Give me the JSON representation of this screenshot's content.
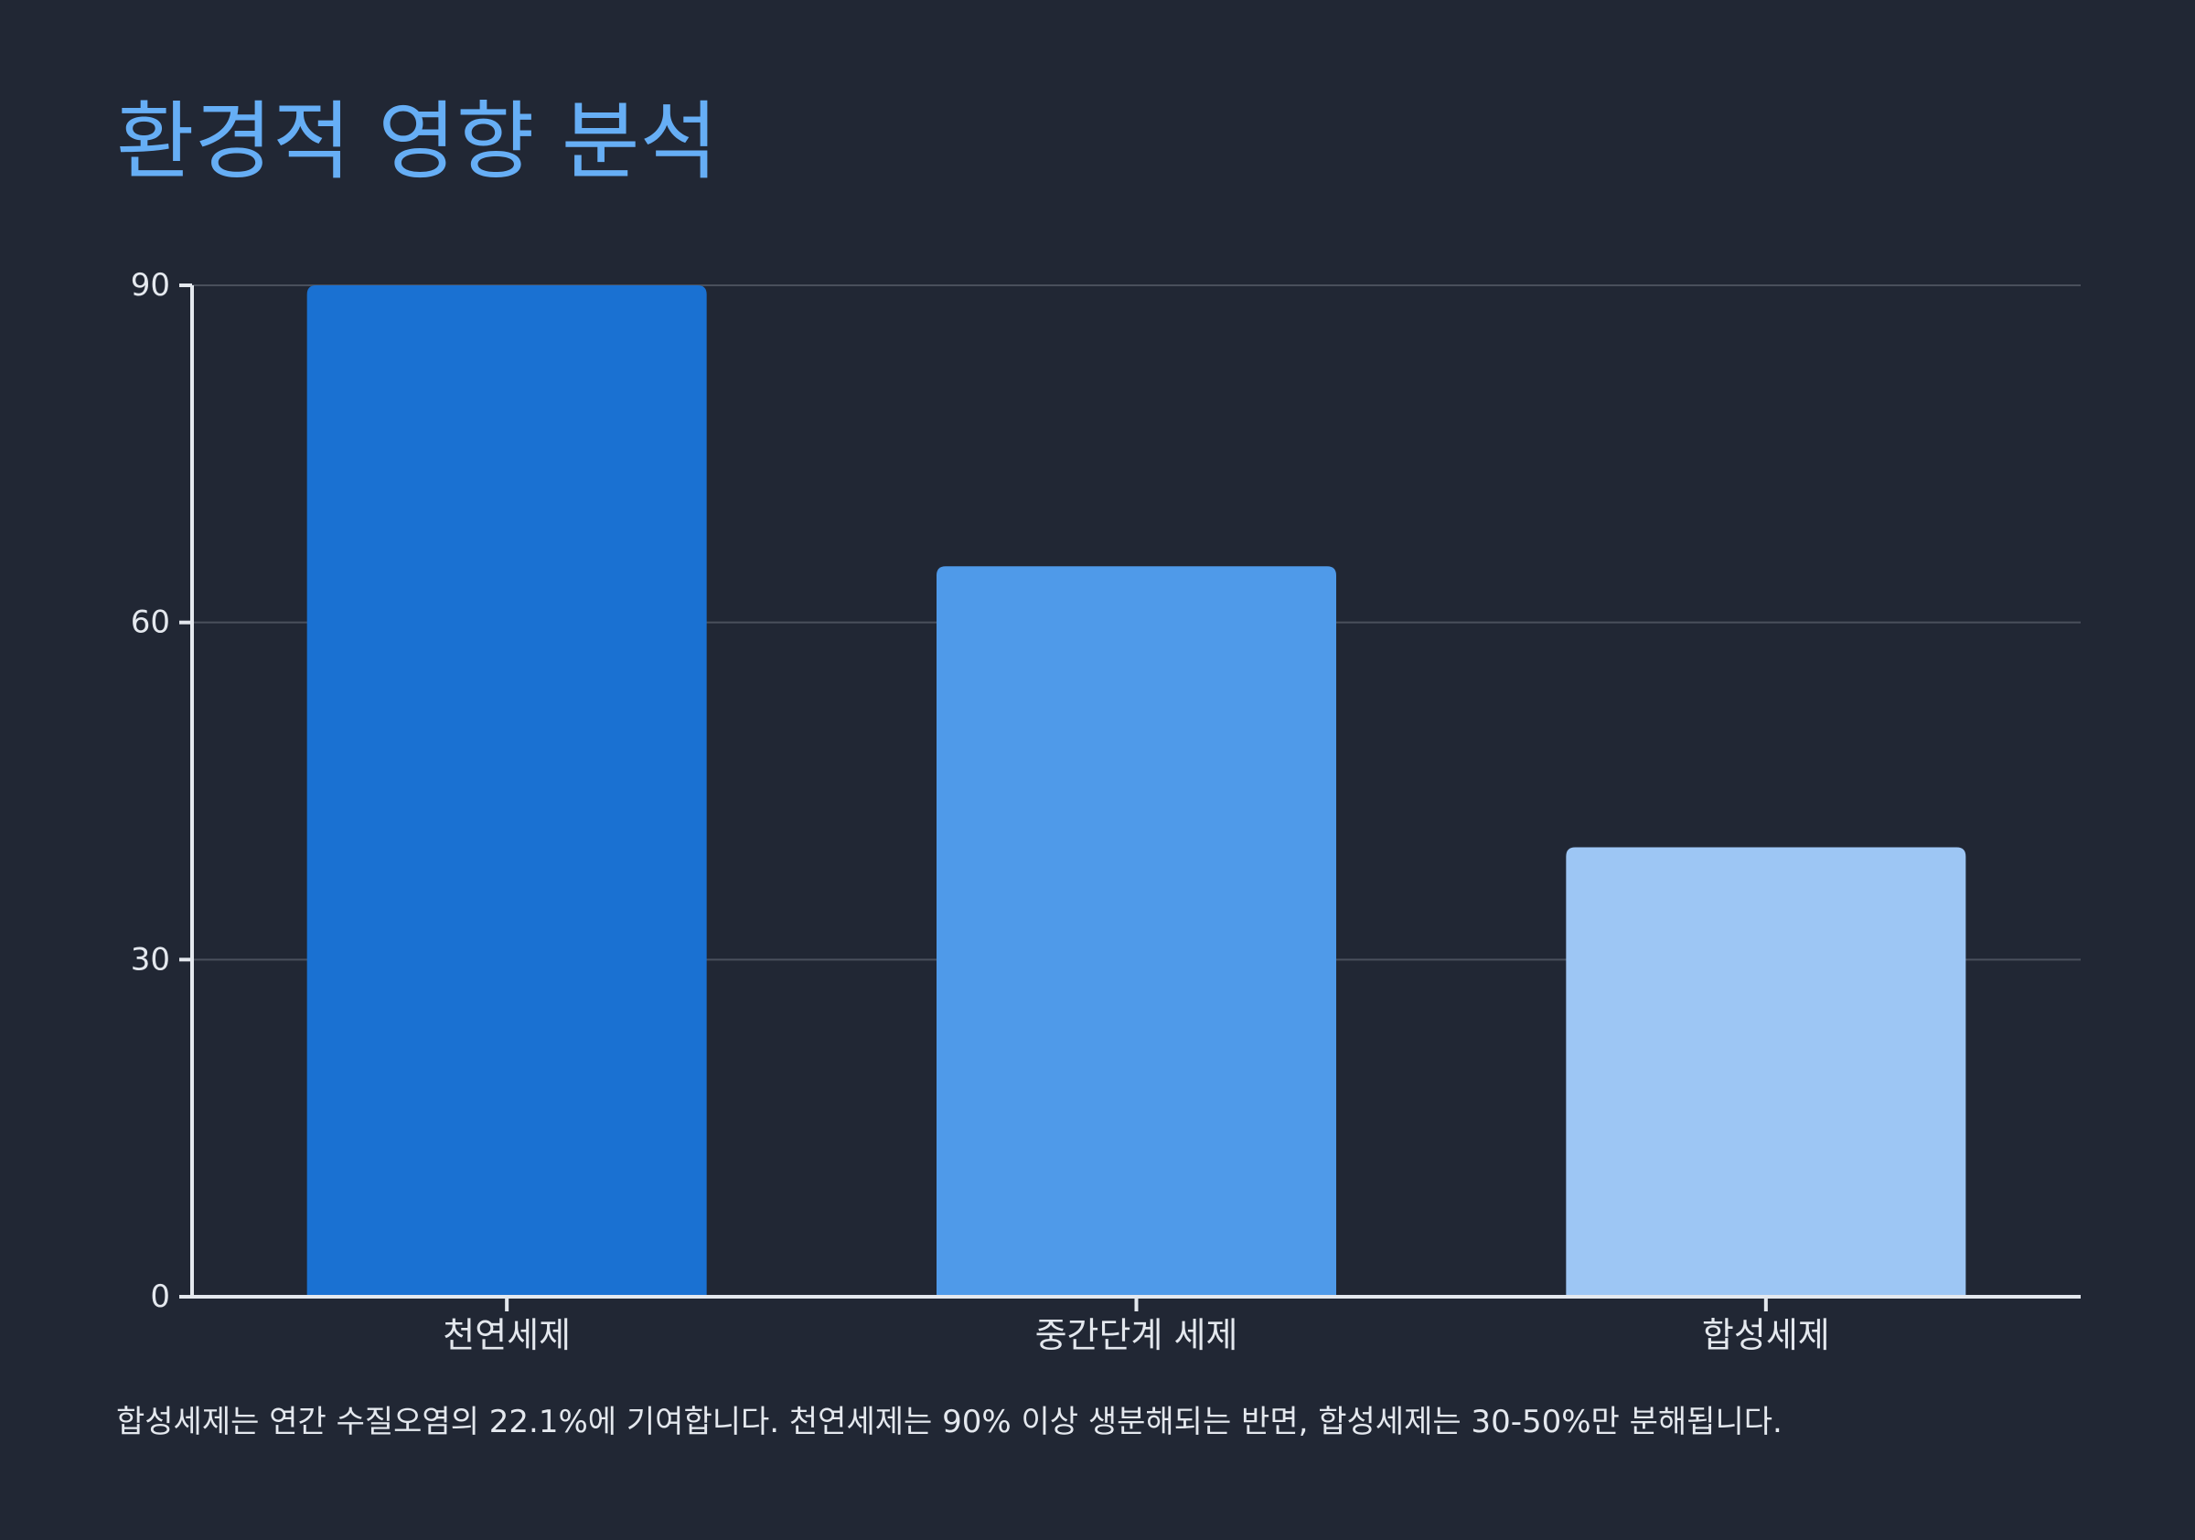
{
  "title": "환경적 영향 분석",
  "caption": "합성세제는 연간 수질오염의 22.1%에 기여합니다. 천연세제는 90% 이상 생분해되는 반면, 합성세제는 30-50%만 분해됩니다.",
  "colors": {
    "background": "#212734",
    "title": "#66aef5",
    "axis": "#e4e8ee",
    "grid": "#4a505c",
    "text": "#e4e8ee"
  },
  "chart_data": {
    "type": "bar",
    "categories": [
      "천연세제",
      "중간단계 세제",
      "합성세제"
    ],
    "values": [
      90,
      65,
      40
    ],
    "bar_colors": [
      "#1a71d2",
      "#4f9ae9",
      "#9dc6f4"
    ],
    "yticks": [
      0,
      30,
      60,
      90
    ],
    "ylim": [
      0,
      90
    ],
    "grid": true,
    "xlabel": "",
    "ylabel": ""
  }
}
